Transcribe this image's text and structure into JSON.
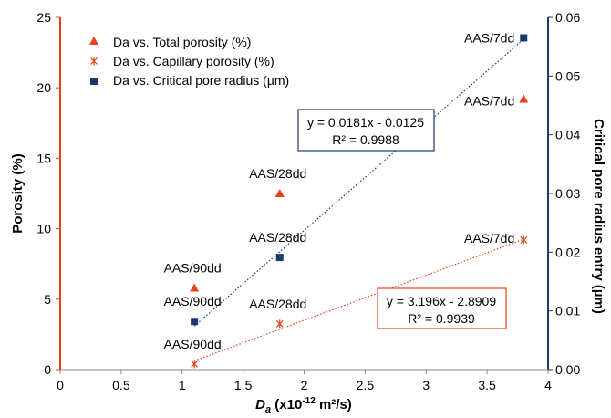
{
  "chart_data": {
    "type": "scatter",
    "x_axis": {
      "label": "D",
      "label_sub": "a",
      "label_rest": " (x10",
      "label_sup": "-12",
      "label_end": " m²/s)",
      "min": 0,
      "max": 4,
      "ticks": [
        "0",
        "0.5",
        "1",
        "1.5",
        "2",
        "2.5",
        "3",
        "3.5",
        "4"
      ]
    },
    "y_axis_left": {
      "label": "Porosity (%)",
      "min": 0,
      "max": 25,
      "ticks": [
        "0",
        "5",
        "10",
        "15",
        "20",
        "25"
      ],
      "color": "#e8401c"
    },
    "y_axis_right": {
      "label": "Critical pore radius entry (µm)",
      "min": 0,
      "max": 0.06,
      "ticks": [
        "0.00",
        "0.01",
        "0.02",
        "0.03",
        "0.04",
        "0.05",
        "0.06"
      ],
      "color": "#1a3a6b"
    },
    "series": [
      {
        "name": "Da vs. Total porosity (%)",
        "marker": "triangle",
        "color": "#e8401c",
        "axis": "left",
        "points": [
          {
            "x": 1.1,
            "y": 5.8,
            "label": "AAS/90dd"
          },
          {
            "x": 1.8,
            "y": 12.5,
            "label": "AAS/28dd"
          },
          {
            "x": 3.8,
            "y": 19.2,
            "label": "AAS/7dd"
          }
        ]
      },
      {
        "name": "Da vs. Capillary porosity (%)",
        "marker": "cross",
        "color": "#e8401c",
        "axis": "left",
        "points": [
          {
            "x": 1.1,
            "y": 0.4,
            "label": "AAS/90dd"
          },
          {
            "x": 1.8,
            "y": 3.25,
            "label": "AAS/28dd"
          },
          {
            "x": 3.8,
            "y": 9.2,
            "label": "AAS/7dd"
          }
        ]
      },
      {
        "name": "Da vs. Critical pore radius (µm)",
        "marker": "square",
        "color": "#1a3a6b",
        "axis": "right",
        "points": [
          {
            "x": 1.1,
            "y": 0.0082,
            "label": "AAS/90dd"
          },
          {
            "x": 1.8,
            "y": 0.0191,
            "label": "AAS/28dd"
          },
          {
            "x": 3.8,
            "y": 0.0565,
            "label": "AAS/7dd"
          }
        ]
      }
    ],
    "trendlines": [
      {
        "series": "Da vs. Critical pore radius (µm)",
        "axis": "right",
        "x_range": [
          1.1,
          3.8
        ],
        "slope": 0.0181,
        "intercept": -0.0125,
        "color": "#1a3a6b",
        "equation": "y = 0.0181x - 0.0125",
        "r2": "R² = 0.9988"
      },
      {
        "series": "Da vs. Capillary porosity (%)",
        "axis": "left",
        "x_range": [
          1.1,
          3.8
        ],
        "slope": 3.196,
        "intercept": -2.8909,
        "color": "#e8401c",
        "equation": "y = 3.196x - 2.8909",
        "r2": "R² = 0.9939"
      }
    ],
    "legend_position": "top-left",
    "grid": false
  }
}
